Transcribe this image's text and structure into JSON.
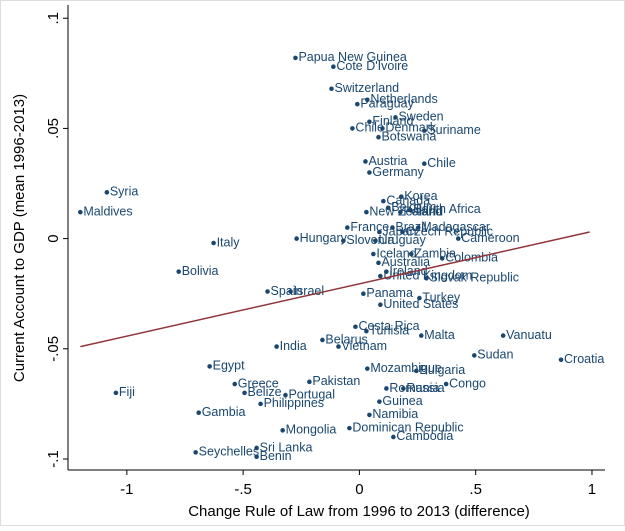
{
  "chart_data": {
    "type": "scatter",
    "x_label": "Change Rule of Law from 1996 to 2013 (difference)",
    "y_label": "Current Account to GDP (mean 1996-2013)",
    "xlim": [
      -1.253,
      1.056
    ],
    "ylim": [
      -0.105,
      0.106
    ],
    "xticks": [
      {
        "value": -1,
        "label": "-1"
      },
      {
        "value": -0.5,
        "label": "-.5"
      },
      {
        "value": 0,
        "label": "0"
      },
      {
        "value": 0.5,
        "label": ".5"
      },
      {
        "value": 1,
        "label": "1"
      }
    ],
    "yticks": [
      {
        "value": -0.1,
        "label": "-.1"
      },
      {
        "value": -0.05,
        "label": "-.05"
      },
      {
        "value": 0,
        "label": "0"
      },
      {
        "value": 0.05,
        "label": ".05"
      },
      {
        "value": 0.1,
        "label": ".1"
      }
    ],
    "series": [
      {
        "color": "#1a476f",
        "labels": [
          "Papua New Guinea",
          "Cote D'Ivoire",
          "Switzerland",
          "Netherlands",
          "Paraguay",
          "Sweden",
          "Finland",
          "Chile",
          "Denmark",
          "Suriname",
          "Botswana",
          "Austria",
          "Chile",
          "Germany",
          "Syria",
          "Maldives",
          "Korea",
          "Canada",
          "Belgium",
          "South Africa",
          "New Zealand",
          "Poland",
          "France",
          "Brazil",
          "Madagascar",
          "Japan",
          "Czech Republic",
          "Italy",
          "Hungary",
          "Slovenia",
          "Uruguay",
          "Cameroon",
          "Iceland",
          "Zambia",
          "Colombia",
          "Australia",
          "Bolivia",
          "Ireland",
          "United Kingdom",
          "Slovak Republic",
          "Israel",
          "Spain",
          "Panama",
          "Turkey",
          "Croatia",
          "United States",
          "Tunisia",
          "Costa Rica",
          "Malta",
          "Vanuatu",
          "Belarus",
          "Vietnam",
          "India",
          "Sudan",
          "Egypt",
          "Pakistan",
          "Mozambique",
          "Bulgaria",
          "Congo",
          "Romania",
          "Russia",
          "Greece",
          "Fiji",
          "Belize",
          "Portugal",
          "Guinea",
          "Philippines",
          "Gambia",
          "Namibia",
          "Mongolia",
          "Dominican Republic",
          "Cambodia",
          "Sri Lanka",
          "Seychelles",
          "Benin"
        ],
        "x": [
          -0.275,
          -0.112,
          -0.12,
          0.034,
          -0.009,
          0.155,
          0.043,
          -0.03,
          0.099,
          0.279,
          0.082,
          0.026,
          0.279,
          0.043,
          -1.086,
          -1.2,
          0.18,
          0.103,
          0.124,
          0.219,
          0.03,
          0.176,
          -0.052,
          0.142,
          0.253,
          0.086,
          0.185,
          -0.627,
          -0.27,
          -0.069,
          0.069,
          0.425,
          0.06,
          0.223,
          0.356,
          0.082,
          -0.777,
          0.116,
          0.09,
          0.288,
          -0.296,
          -0.395,
          0.017,
          0.258,
          0.867,
          0.09,
          0.03,
          -0.017,
          0.266,
          0.618,
          -0.159,
          -0.09,
          -0.356,
          0.494,
          -0.644,
          -0.215,
          0.034,
          0.245,
          0.373,
          0.116,
          0.189,
          -0.536,
          -1.047,
          -0.494,
          -0.318,
          0.086,
          -0.425,
          -0.691,
          0.043,
          -0.33,
          -0.043,
          0.146,
          -0.442,
          -0.704,
          -0.442
        ],
        "values": [
          0.082,
          0.078,
          0.068,
          0.063,
          0.061,
          0.055,
          0.053,
          0.05,
          0.05,
          0.049,
          0.046,
          0.035,
          0.034,
          0.03,
          0.021,
          0.012,
          0.019,
          0.017,
          0.014,
          0.013,
          0.012,
          0.012,
          0.005,
          0.005,
          0.005,
          0.003,
          0.003,
          -0.002,
          0.0,
          -0.001,
          -0.001,
          0.0,
          -0.007,
          -0.007,
          -0.009,
          -0.011,
          -0.015,
          -0.015,
          -0.017,
          -0.018,
          -0.024,
          -0.024,
          -0.025,
          -0.027,
          -0.055,
          -0.03,
          -0.042,
          -0.04,
          -0.044,
          -0.044,
          -0.046,
          -0.049,
          -0.049,
          -0.053,
          -0.058,
          -0.065,
          -0.059,
          -0.06,
          -0.066,
          -0.068,
          -0.068,
          -0.066,
          -0.07,
          -0.07,
          -0.071,
          -0.074,
          -0.075,
          -0.079,
          -0.08,
          -0.087,
          -0.086,
          -0.09,
          -0.095,
          -0.097,
          -0.099
        ]
      },
      {
        "type": "line",
        "color": "#90353b",
        "x": [
          -1.2,
          0.99
        ],
        "values": [
          -0.049,
          0.003
        ]
      }
    ]
  }
}
